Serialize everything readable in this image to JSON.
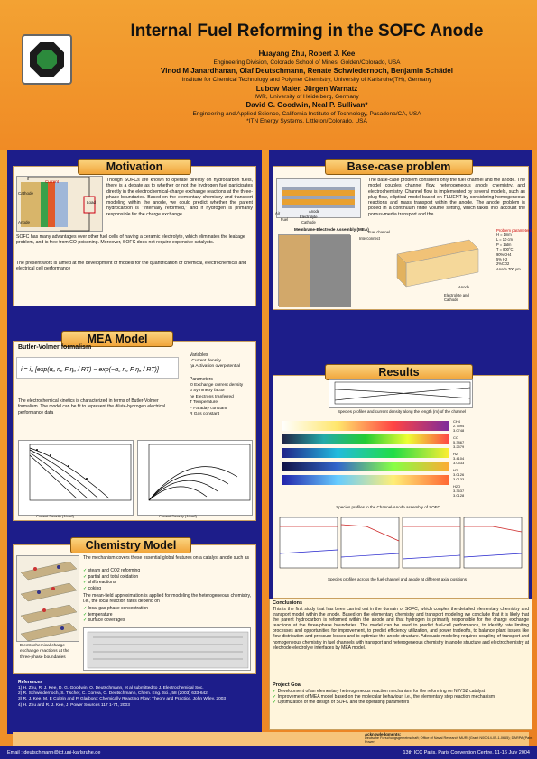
{
  "header": {
    "title": "Internal Fuel Reforming in the SOFC Anode",
    "authors1": "Huayang Zhu, Robert J. Kee",
    "affil1": "Engineering Division, Colorado School of Mines, Golden/Colorado, USA",
    "authors2": "Vinod M Janardhanan, Olaf Deutschmann, Renate Schwiedernoch, Benjamin Schädel",
    "affil2": "Institute for Chemical Technology and Polymer Chemistry, University of Karlsruhe(TH), Germany",
    "authors3": "Lubow Maier, Jürgen Warnatz",
    "affil3": "IWR, University of Heidelberg, Germany",
    "authors4": "David G. Goodwin, Neal P. Sullivan*",
    "affil4": "Engineering and Applied Science, California Institute of Technology, Pasadena/CA, USA",
    "affil5": "*ITN Energy Systems, Littleton/Colorado, USA"
  },
  "motivation": {
    "title": "Motivation",
    "text1": "Though SOFCs are known to operate directly on hydrocarbon fuels, there is a debate as to whether or not the hydrogen fuel participates directly in the electrochemical-charge exchange reactions at the three-phase boundaries. Based on the elementary chemistry and transport modeling within the anode, we could predict whether the parent hydrocarbon is \"internally reformed,\" and if hydrogen is primarily responsible for the charge exchange.",
    "text2": "SOFC has many advantages over other fuel cells of having a ceramic electrolyte, which eliminates the leakage problem, and is free from CO poisoning. Moreover, SOFC does not require expensive catalysts.",
    "text3": "The present work is aimed at the development of models for the quantification of chemical, electrochemical and electrical cell performance",
    "fig_labels": [
      "Current",
      "Cathode",
      "Anode",
      "Electrolyte",
      "Load",
      "Current"
    ]
  },
  "base_case": {
    "title": "Base-case problem",
    "text": "The base-case problem considers only the fuel channel and the anode. The model couples channel flow, heterogeneous anode chemistry, and electrochemistry. Channel flow is implemented by several models, such as plug flow, elliptical model based on FLUENT by considering homogeneous reactions and mass transport within the anode. The anode problem is posed in a continuum finite volume setting, which takes into account the porous-media transport and the",
    "fig_labels": [
      "Air",
      "Fuel",
      "Anode",
      "Electrolyte",
      "Cathode"
    ],
    "mea_label": "Membrane-Electrode Assembly (MEA)",
    "channel_labels": [
      "Fuel channel",
      "Interconnect"
    ],
    "params_title": "Problem parameters",
    "params": [
      "H = 1mm",
      "L = 10 cm",
      "P = 1atm",
      "T = 800°C",
      "90%CH4",
      "5% H2",
      "2%CO2",
      "Anode 700 µm"
    ],
    "anode_label": "Anode",
    "elec_label": "Electrolyte and Cathode"
  },
  "mea": {
    "title": "MEA Model",
    "subtitle": "Butler-Volmer formalism",
    "variables_title": "Variables",
    "variables": [
      "i  Current density",
      "ηa Activation overpotential"
    ],
    "parameters_title": "Parameters",
    "parameters": [
      "i0  Exchange current density",
      "α  Symmetry factor",
      "ne Electrons tranferred",
      "T  Temperature",
      "F  Faraday constant",
      "R Gas constant"
    ],
    "text": "The electrochemical kinetics is characterized in terms of Butler-Volmer formalism. The model can be fit to represent the dilute-hydrogen electrical performance data",
    "chart1_xlabel": "Current Density (A/cm²)",
    "chart1_ylabel": "Voltage (V)",
    "chart2_xlabel": "Current Density (A/cm²)",
    "chart2_ylabel": "Power Density (W/cm²)"
  },
  "chemistry": {
    "title": "Chemistry Model",
    "text1": "The mechanism covers these essential global features on a catalyst anode such as",
    "features1": [
      "steam and CO2 reforming",
      "partial and total oxidation",
      "shift reactions",
      "coking"
    ],
    "text2": "The mean-field approximation is applied for modeling the heterogeneous chemistry, i.e., the local reaction rates depend on",
    "features2": [
      "local gas-phase concentration",
      "temperature",
      "surface coverages"
    ],
    "fig_caption": "Electrochemical charge exchange reactions at the three-phase boundaries"
  },
  "results": {
    "title": "Results",
    "cap1": "Species profiles and current density along the length (m) of the channel",
    "cap2": "Species profiles in the Channel-Anode assembly of SOFC",
    "cap3": "Species profiles across the fuel-channel and anode at different axial positions",
    "colorbars": [
      {
        "species": "CH4",
        "hi": "2.7594",
        "lo": "3.0748"
      },
      {
        "species": "CO",
        "hi": "5.3867",
        "lo": "3.2579"
      },
      {
        "species": "H2",
        "hi": "3.4104",
        "lo": "3.0533"
      },
      {
        "species": "H2",
        "hi": "3.0126",
        "lo": "3.0133"
      },
      {
        "species": "H2O",
        "hi": "3.3637",
        "lo": "3.0128"
      }
    ],
    "conclusions_title": "Conclusions",
    "conclusions": "This is the first study that has been carried out in the domain of SOFC, which couples the detailed elementary chemistry and transport model within the anode. Based on the elementary chemistry and transport modeling we conclude that it is likely that the parent hydrocarbon is reformed within the anode and that hydrogen is primarily responsible for the charge exchange reactions at the three-phase boundaries. The model can be used to predict fuel-cell performance, to identify rate limiting processes and opportunities for improvement, to predict efficiency utilization, and power tradeoffs, to balance plant issues like flow distribution and pressure losses and to optimize the anode structure. Adequate modeling requires coupling of transport and homogeneous chemistry in fuel channels with transport and heterogeneous chemistry in anode structure and electrochemistry at electrode-electrolyte interfaces by MEA model.",
    "project_goal_title": "Project Goal",
    "goals": [
      "Development of an elementary heterogeneous reaction mechanism for the reforming on Ni/YSZ catalyst",
      "Improvement of MEA model based on the molecular behaviour, i.e., the elementary step reaction mechanism",
      "Optimization of the design of SOFC and the operating parameters"
    ]
  },
  "references": {
    "title": "References",
    "items": [
      "1) H. Zhu, R. J. Kee, D. G. Goodwin, O. Deutschmann, et al submitted to J. Electrochemical Soc.",
      "2) R. Schwiedernoch, S. Tischer, C. Correa, O. Deutschmann, Chem. Eng. Sci., 58 (2003) 633-642",
      "3) R. J. Kee, M. E Coltrin and P. Glarborg: Chemically Reacting Flow: Theory and Practice, John Wiley, 2003",
      "4) H. Zhu and R. J. Kee, J. Power Sources 117 1-74, 2003"
    ],
    "ack_title": "Acknowledgments:",
    "ack": [
      "Deutsche Forschungsgemeinschaft",
      "Office of Naval Research MURI (Grant N00014-02-1-0665)",
      "DARPA (Palm Power)"
    ]
  },
  "footer": {
    "email": "Email : deutschmann@ict.uni-karlsruhe.de",
    "conference": "13th ICC Paris, Paris Convention Centre, 11-16 July 2004"
  },
  "colors": {
    "band_blue": "#1d1d8a",
    "panel_bg": "#fff8ea",
    "title_orange": "#f1a53a"
  }
}
